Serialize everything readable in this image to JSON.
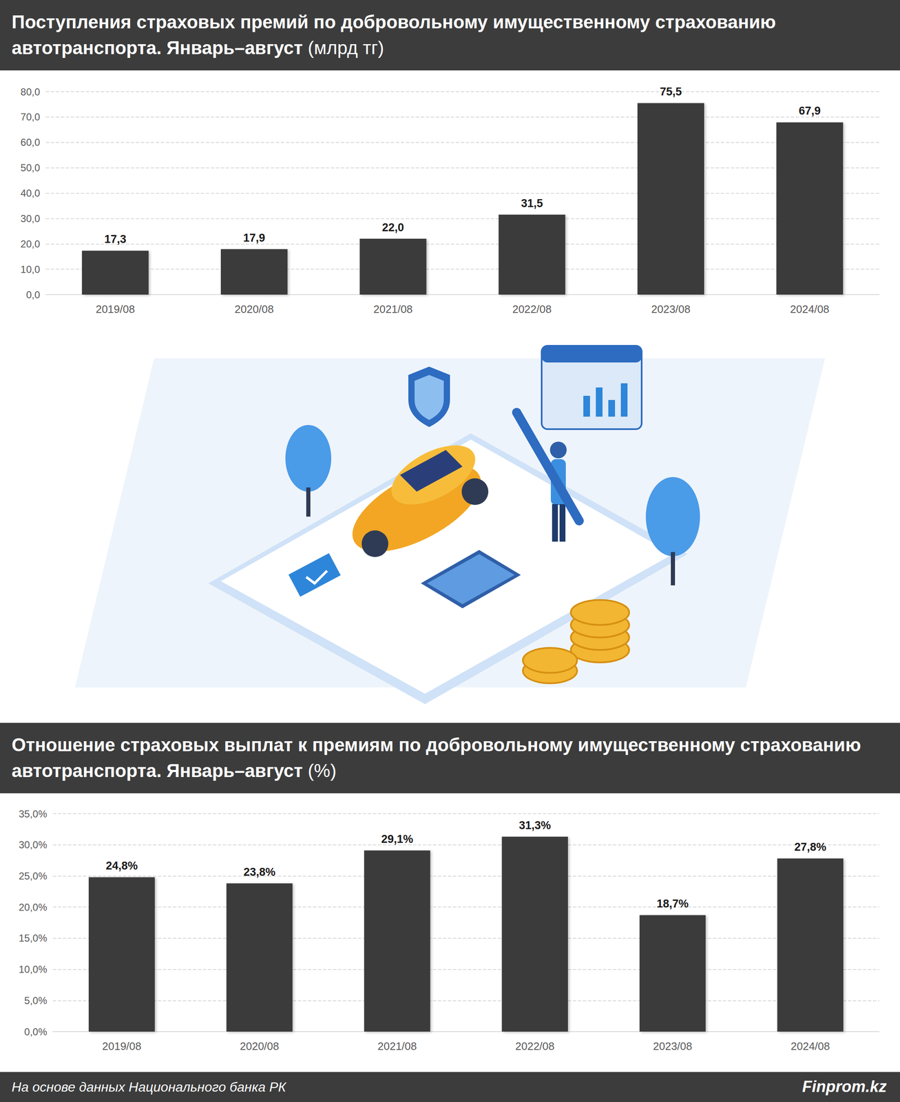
{
  "chart_data": [
    {
      "type": "bar",
      "title": "Поступления страховых премий по добровольному имущественному страхованию автотранспорта. Январь–август (млрд тг)",
      "categories": [
        "2019/08",
        "2020/08",
        "2021/08",
        "2022/08",
        "2023/08",
        "2024/08"
      ],
      "values": [
        17.3,
        17.9,
        22.0,
        31.5,
        75.5,
        67.9
      ],
      "value_labels": [
        "17,3",
        "17,9",
        "22,0",
        "31,5",
        "75,5",
        "67,9"
      ],
      "color": "#3b3b3b",
      "ylim": [
        0,
        80
      ],
      "yticks": [
        {
          "value": 0,
          "label": "0,0"
        },
        {
          "value": 10,
          "label": "10,0"
        },
        {
          "value": 20,
          "label": "20,0"
        },
        {
          "value": 30,
          "label": "30,0"
        },
        {
          "value": 40,
          "label": "40,0"
        },
        {
          "value": 50,
          "label": "50,0"
        },
        {
          "value": 60,
          "label": "60,0"
        },
        {
          "value": 70,
          "label": "70,0"
        },
        {
          "value": 80,
          "label": "80,0"
        }
      ],
      "grid": true,
      "data_labels": true
    },
    {
      "type": "bar",
      "title": "Отношение страховых выплат к премиям по добровольному имущественному страхованию автотранспорта. Январь–август (%)",
      "categories": [
        "2019/08",
        "2020/08",
        "2021/08",
        "2022/08",
        "2023/08",
        "2024/08"
      ],
      "values": [
        24.8,
        23.8,
        29.1,
        31.3,
        18.7,
        27.8
      ],
      "value_labels": [
        "24,8%",
        "23,8%",
        "29,1%",
        "31,3%",
        "18,7%",
        "27,8%"
      ],
      "color": "#3b3b3b",
      "ylim": [
        0,
        35
      ],
      "yticks": [
        {
          "value": 0,
          "label": "0,0%"
        },
        {
          "value": 5,
          "label": "5,0%"
        },
        {
          "value": 10,
          "label": "10,0%"
        },
        {
          "value": 15,
          "label": "15,0%"
        },
        {
          "value": 20,
          "label": "20,0%"
        },
        {
          "value": 25,
          "label": "25,0%"
        },
        {
          "value": 30,
          "label": "30,0%"
        },
        {
          "value": 35,
          "label": "35,0%"
        }
      ],
      "grid": true,
      "data_labels": true
    }
  ],
  "footer": {
    "source": "На основе данных Национального банка РК",
    "brand": "Finprom.kz"
  }
}
